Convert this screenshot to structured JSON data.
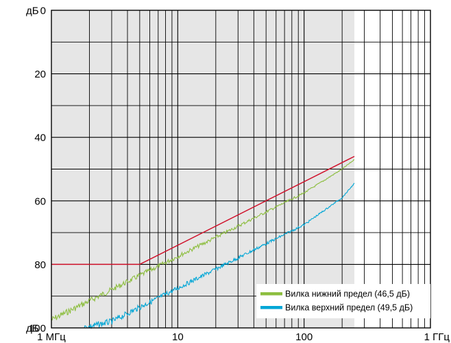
{
  "chart_data": {
    "type": "line",
    "x_scale": "log",
    "y_inverted": true,
    "xlim": [
      1,
      1000
    ],
    "ylim": [
      0,
      100
    ],
    "grid": true,
    "legend_position": "bottom-right",
    "x_ticks": [
      {
        "value": 1,
        "label": "1 МГц"
      },
      {
        "value": 10,
        "label": "10"
      },
      {
        "value": 100,
        "label": "100"
      },
      {
        "value": 1000,
        "label": "1 ГГц"
      }
    ],
    "y_ticks": [
      {
        "value": 0,
        "label": "0"
      },
      {
        "value": 20,
        "label": "20"
      },
      {
        "value": 40,
        "label": "40"
      },
      {
        "value": 60,
        "label": "60"
      },
      {
        "value": 80,
        "label": "80"
      },
      {
        "value": 100,
        "label": "100"
      }
    ],
    "y_unit_label": "дБ",
    "shaded_region": {
      "color": "#e6e6e6",
      "x_range": [
        1,
        250
      ]
    },
    "limit_line": {
      "color": "#d0102a",
      "x": [
        1,
        5,
        250
      ],
      "y": [
        80,
        80,
        46
      ]
    },
    "series": [
      {
        "name": "Вилка нижний предел (46,5 дБ)",
        "color": "#8dbe3f",
        "x": [
          1,
          2,
          5,
          10,
          20,
          50,
          100,
          200,
          250
        ],
        "y": [
          97.5,
          91.5,
          83.5,
          77.5,
          71.5,
          63.5,
          57.5,
          50,
          47
        ]
      },
      {
        "name": "Вилка верхний предел (49,5 дБ)",
        "color": "#00a6d6",
        "x": [
          1.8,
          3,
          5,
          10,
          20,
          50,
          100,
          200,
          250
        ],
        "y": [
          100,
          98,
          93.5,
          87.5,
          81.5,
          73.5,
          67.5,
          59,
          54.5
        ]
      }
    ]
  }
}
